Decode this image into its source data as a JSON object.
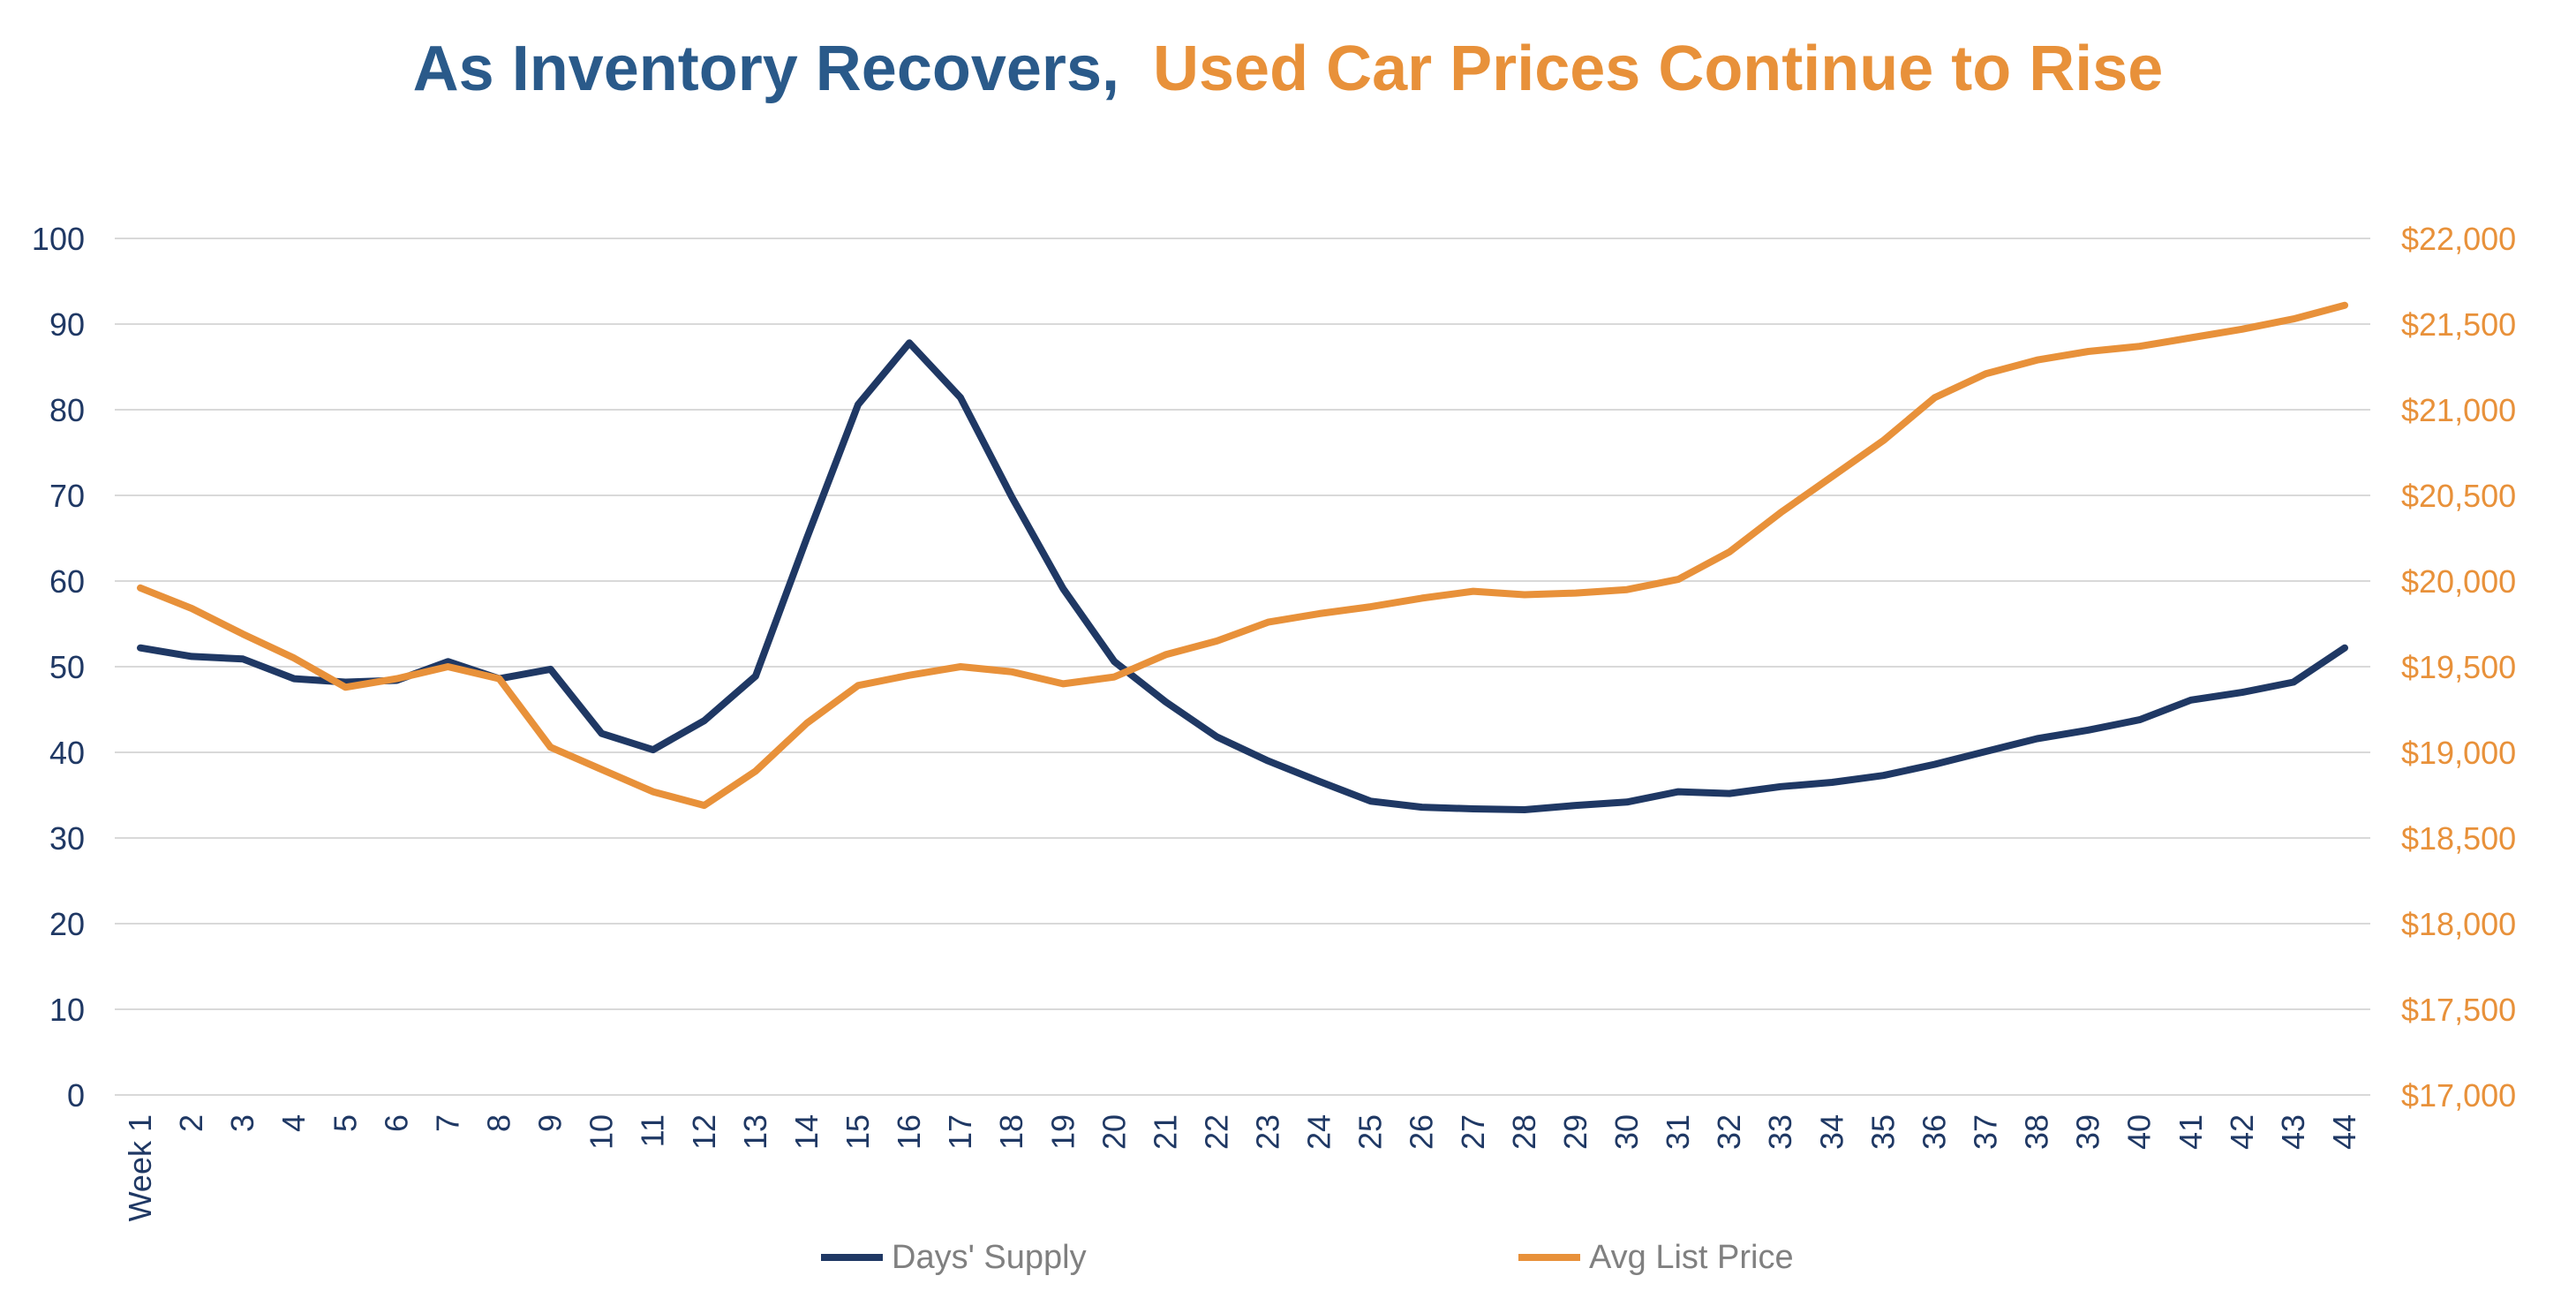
{
  "chart_data": {
    "type": "line",
    "title": {
      "part1": "As Inventory Recovers,",
      "part2": "Used Car Prices Continue to Rise",
      "part1_color": "#2A5A8A",
      "part2_color": "#E8913A"
    },
    "categories": [
      "Week 1",
      "2",
      "3",
      "4",
      "5",
      "6",
      "7",
      "8",
      "9",
      "10",
      "11",
      "12",
      "13",
      "14",
      "15",
      "16",
      "17",
      "18",
      "19",
      "20",
      "21",
      "22",
      "23",
      "24",
      "25",
      "26",
      "27",
      "28",
      "29",
      "30",
      "31",
      "32",
      "33",
      "34",
      "35",
      "36",
      "37",
      "38",
      "39",
      "40",
      "41",
      "42",
      "43",
      "44"
    ],
    "y_left": {
      "min": 0,
      "max": 100,
      "step": 10,
      "ticks": [
        "0",
        "10",
        "20",
        "30",
        "40",
        "50",
        "60",
        "70",
        "80",
        "90",
        "100"
      ],
      "color": "#1F3864"
    },
    "y_right": {
      "min": 17000,
      "max": 22000,
      "step": 500,
      "ticks": [
        "$17,000",
        "$17,500",
        "$18,000",
        "$18,500",
        "$19,000",
        "$19,500",
        "$20,000",
        "$20,500",
        "$21,000",
        "$21,500",
        "$22,000"
      ],
      "color": "#E8913A"
    },
    "grid": true,
    "legend_position": "bottom",
    "series": [
      {
        "name": "Days' Supply",
        "axis": "left",
        "color": "#1F3864",
        "values": [
          52.2,
          51.2,
          50.9,
          48.6,
          48.2,
          48.4,
          50.6,
          48.6,
          49.7,
          42.2,
          40.3,
          43.7,
          48.9,
          65.0,
          80.6,
          87.8,
          81.4,
          69.8,
          59.1,
          50.6,
          45.9,
          41.8,
          39.0,
          36.6,
          34.3,
          33.6,
          33.4,
          33.3,
          33.8,
          34.2,
          35.4,
          35.2,
          36.0,
          36.5,
          37.3,
          38.6,
          40.1,
          41.6,
          42.6,
          43.8,
          46.1,
          47.0,
          48.2,
          52.2
        ]
      },
      {
        "name": "Avg List Price",
        "axis": "right",
        "color": "#E8913A",
        "values": [
          19960,
          19840,
          19690,
          19550,
          19380,
          19430,
          19500,
          19430,
          19030,
          18900,
          18770,
          18690,
          18890,
          19170,
          19390,
          19450,
          19500,
          19470,
          19400,
          19440,
          19570,
          19650,
          19760,
          19810,
          19850,
          19900,
          19940,
          19920,
          19930,
          19950,
          20010,
          20170,
          20400,
          20610,
          20820,
          21070,
          21210,
          21290,
          21340,
          21370,
          21420,
          21470,
          21530,
          21610
        ]
      }
    ]
  }
}
